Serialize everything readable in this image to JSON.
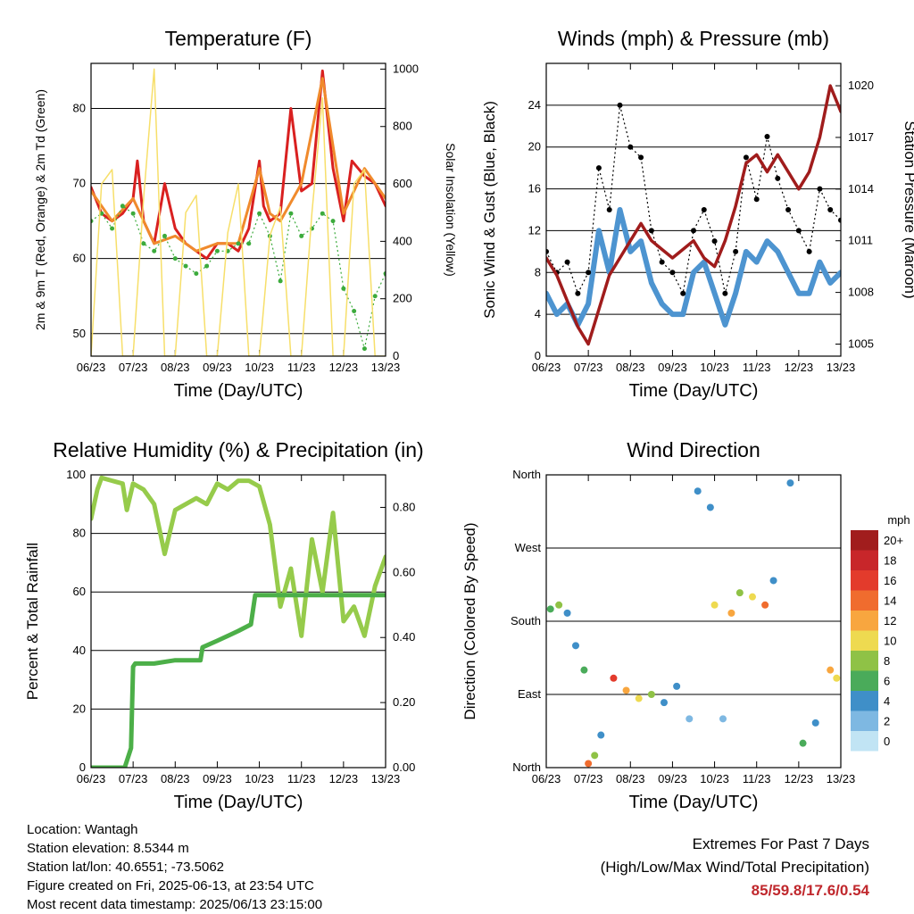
{
  "chart_data": [
    {
      "type": "line",
      "title": "Temperature (F)",
      "xlabel": "Time (Day/UTC)",
      "ylabel": "2m & 9m T (Red, Orange) & 2m Td (Green)",
      "ylabel_right": "Solar Insolation (Yellow)",
      "x_ticks": [
        "06/23",
        "07/23",
        "08/23",
        "09/23",
        "10/23",
        "11/23",
        "12/23",
        "13/23"
      ],
      "ylim": [
        47,
        86
      ],
      "y_ticks": [
        50,
        60,
        70,
        80
      ],
      "ylim_right": [
        0,
        1020
      ],
      "y_ticks_right": [
        0,
        200,
        400,
        600,
        800,
        1000
      ],
      "series": [
        {
          "name": "2m T",
          "color": "#d92020",
          "x": [
            0,
            0.25,
            0.5,
            0.75,
            1.0,
            1.1,
            1.25,
            1.5,
            1.75,
            2.0,
            2.25,
            2.5,
            2.75,
            3.0,
            3.25,
            3.5,
            3.75,
            4.0,
            4.1,
            4.25,
            4.5,
            4.75,
            5.0,
            5.25,
            5.5,
            5.75,
            6.0,
            6.2,
            6.5,
            6.75,
            7.0
          ],
          "y": [
            69.5,
            66,
            65,
            66,
            68,
            73,
            65,
            62,
            70,
            64,
            62,
            61,
            60,
            62,
            62,
            61,
            64,
            73,
            67,
            65,
            66,
            80,
            69,
            70,
            85,
            72,
            65,
            73,
            71,
            70,
            67
          ]
        },
        {
          "name": "9m T",
          "color": "#f08a2c",
          "x": [
            0,
            0.5,
            1.0,
            1.5,
            2.0,
            2.5,
            3.0,
            3.5,
            4.0,
            4.25,
            4.5,
            5.0,
            5.5,
            6.0,
            6.5,
            7.0
          ],
          "y": [
            69,
            65,
            68,
            62,
            63,
            61,
            62,
            62,
            72,
            66,
            65,
            70,
            84,
            66,
            72,
            68
          ]
        },
        {
          "name": "2m Td",
          "color": "#3cab3c",
          "x": [
            0,
            0.25,
            0.5,
            0.75,
            1.0,
            1.25,
            1.5,
            1.75,
            2.0,
            2.25,
            2.5,
            2.75,
            3.0,
            3.25,
            3.5,
            3.75,
            4.0,
            4.25,
            4.5,
            4.75,
            5.0,
            5.25,
            5.5,
            5.75,
            6.0,
            6.25,
            6.5,
            6.75,
            7.0
          ],
          "y": [
            65,
            66,
            64,
            67,
            66,
            62,
            61,
            63,
            60,
            59,
            58,
            59,
            61,
            61,
            62,
            62,
            66,
            63,
            57,
            66,
            63,
            64,
            66,
            65,
            56,
            53,
            48,
            55,
            58
          ]
        },
        {
          "name": "Solar Insolation",
          "color": "#f7df6a",
          "axis": "right",
          "x": [
            0,
            0.25,
            0.5,
            0.75,
            1.0,
            1.25,
            1.5,
            1.75,
            2.0,
            2.25,
            2.5,
            2.75,
            3.0,
            3.25,
            3.5,
            3.75,
            4.0,
            4.25,
            4.5,
            4.75,
            5.0,
            5.25,
            5.5,
            5.75,
            6.0,
            6.25,
            6.5,
            6.75,
            7.0
          ],
          "y": [
            0,
            600,
            650,
            0,
            0,
            550,
            1000,
            0,
            0,
            500,
            560,
            0,
            0,
            430,
            600,
            0,
            0,
            420,
            520,
            0,
            0,
            500,
            900,
            0,
            0,
            600,
            650,
            0,
            0
          ]
        }
      ]
    },
    {
      "type": "line",
      "title": "Winds (mph) & Pressure (mb)",
      "xlabel": "Time (Day/UTC)",
      "ylabel": "Sonic Wind & Gust (Blue, Black)",
      "ylabel_right": "Station Pressure (Maroon)",
      "x_ticks": [
        "06/23",
        "07/23",
        "08/23",
        "09/23",
        "10/23",
        "11/23",
        "12/23",
        "13/23"
      ],
      "ylim": [
        0,
        28
      ],
      "y_ticks": [
        0,
        4,
        8,
        12,
        16,
        20,
        24
      ],
      "ylim_right": [
        1004.3,
        1021.3
      ],
      "y_ticks_right": [
        1005,
        1008,
        1011,
        1014,
        1017,
        1020
      ],
      "series": [
        {
          "name": "Sonic Wind",
          "color": "#4d94d0",
          "x": [
            0,
            0.25,
            0.5,
            0.75,
            1.0,
            1.25,
            1.5,
            1.75,
            2.0,
            2.25,
            2.5,
            2.75,
            3.0,
            3.25,
            3.5,
            3.75,
            4.0,
            4.25,
            4.5,
            4.75,
            5.0,
            5.25,
            5.5,
            5.75,
            6.0,
            6.25,
            6.5,
            6.75,
            7.0
          ],
          "y": [
            6,
            4,
            5,
            3,
            5,
            12,
            8,
            14,
            10,
            11,
            7,
            5,
            4,
            4,
            8,
            9,
            6,
            3,
            6,
            10,
            9,
            11,
            10,
            8,
            6,
            6,
            9,
            7,
            8
          ]
        },
        {
          "name": "Gust",
          "color": "#000000",
          "x": [
            0,
            0.25,
            0.5,
            0.75,
            1.0,
            1.25,
            1.5,
            1.75,
            2.0,
            2.25,
            2.5,
            2.75,
            3.0,
            3.25,
            3.5,
            3.75,
            4.0,
            4.25,
            4.5,
            4.75,
            5.0,
            5.25,
            5.5,
            5.75,
            6.0,
            6.25,
            6.5,
            6.75,
            7.0
          ],
          "y": [
            10,
            8,
            9,
            6,
            8,
            18,
            14,
            24,
            20,
            19,
            12,
            9,
            8,
            6,
            12,
            14,
            11,
            6,
            10,
            19,
            15,
            21,
            17,
            14,
            12,
            10,
            16,
            14,
            13
          ]
        },
        {
          "name": "Station Pressure",
          "color": "#a01c1c",
          "axis": "right",
          "x": [
            0,
            0.25,
            0.5,
            0.75,
            1.0,
            1.25,
            1.5,
            1.75,
            2.0,
            2.25,
            2.5,
            2.75,
            3.0,
            3.25,
            3.5,
            3.75,
            4.0,
            4.25,
            4.5,
            4.75,
            5.0,
            5.25,
            5.5,
            5.75,
            6.0,
            6.25,
            6.5,
            6.75,
            7.0
          ],
          "y": [
            1010,
            1009,
            1007.5,
            1006,
            1005,
            1007,
            1009,
            1010,
            1011,
            1012,
            1011,
            1010.5,
            1010,
            1010.5,
            1011,
            1010,
            1009.5,
            1011,
            1013,
            1015.5,
            1016,
            1015,
            1016,
            1015,
            1014,
            1015,
            1017,
            1020,
            1018.5
          ]
        }
      ]
    },
    {
      "type": "line",
      "title": "Relative Humidity (%) & Precipitation (in)",
      "xlabel": "Time (Day/UTC)",
      "ylabel": "Percent & Total Rainfall",
      "x_ticks": [
        "06/23",
        "07/23",
        "08/23",
        "09/23",
        "10/23",
        "11/23",
        "12/23",
        "13/23"
      ],
      "ylim": [
        0,
        100
      ],
      "y_ticks": [
        0,
        20,
        40,
        60,
        80,
        100
      ],
      "ylim_right": [
        0,
        0.9
      ],
      "y_ticks_right": [
        "0.00",
        "0.20",
        "0.40",
        "0.60",
        "0.80"
      ],
      "series": [
        {
          "name": "Relative Humidity",
          "color": "#96cb4b",
          "x": [
            0,
            0.15,
            0.25,
            0.5,
            0.75,
            0.85,
            1.0,
            1.25,
            1.5,
            1.75,
            2.0,
            2.25,
            2.5,
            2.75,
            3.0,
            3.25,
            3.5,
            3.75,
            4.0,
            4.25,
            4.5,
            4.75,
            5.0,
            5.25,
            5.5,
            5.75,
            6.0,
            6.25,
            6.5,
            6.75,
            7.0
          ],
          "y": [
            85,
            95,
            99,
            98,
            97,
            88,
            97,
            95,
            90,
            73,
            88,
            90,
            92,
            90,
            97,
            95,
            98,
            98,
            96,
            83,
            55,
            68,
            45,
            78,
            60,
            87,
            50,
            55,
            45,
            62,
            72
          ]
        },
        {
          "name": "Total Rainfall",
          "color": "#4caf48",
          "axis": "right",
          "x": [
            0,
            0.8,
            0.95,
            1.0,
            1.05,
            1.5,
            2.0,
            2.6,
            2.65,
            3.0,
            3.5,
            3.8,
            3.9,
            4.5,
            5.0,
            6.0,
            7.0
          ],
          "y": [
            0,
            0,
            0.06,
            0.31,
            0.32,
            0.32,
            0.33,
            0.33,
            0.37,
            0.39,
            0.42,
            0.44,
            0.53,
            0.53,
            0.53,
            0.53,
            0.53
          ]
        }
      ]
    },
    {
      "type": "scatter",
      "title": "Wind Direction",
      "xlabel": "Time (Day/UTC)",
      "ylabel": "Direction (Colored By Speed)",
      "x_ticks": [
        "06/23",
        "07/23",
        "08/23",
        "09/23",
        "10/23",
        "11/23",
        "12/23",
        "13/23"
      ],
      "y_ticks": [
        "North",
        "East",
        "South",
        "West",
        "North"
      ],
      "ylim": [
        0,
        360
      ],
      "colorbar": {
        "unit": "mph",
        "labels": [
          "20+",
          "18",
          "16",
          "14",
          "12",
          "10",
          "8",
          "6",
          "4",
          "2",
          "0"
        ],
        "colors": [
          "#a11d1d",
          "#c8262a",
          "#e33b2c",
          "#f06c2e",
          "#f8a63f",
          "#eeda50",
          "#8fc246",
          "#4aab5a",
          "#3f8fc8",
          "#7eb8e2",
          "#c1e4f4"
        ]
      },
      "points": [
        {
          "x": 0.1,
          "dir": 195,
          "speed": 6
        },
        {
          "x": 0.3,
          "dir": 200,
          "speed": 8
        },
        {
          "x": 0.5,
          "dir": 190,
          "speed": 4
        },
        {
          "x": 0.7,
          "dir": 150,
          "speed": 4
        },
        {
          "x": 0.9,
          "dir": 120,
          "speed": 6
        },
        {
          "x": 1.0,
          "dir": 5,
          "speed": 14
        },
        {
          "x": 1.15,
          "dir": 15,
          "speed": 8
        },
        {
          "x": 1.3,
          "dir": 40,
          "speed": 4
        },
        {
          "x": 1.6,
          "dir": 110,
          "speed": 16
        },
        {
          "x": 1.9,
          "dir": 95,
          "speed": 12
        },
        {
          "x": 2.2,
          "dir": 85,
          "speed": 10
        },
        {
          "x": 2.5,
          "dir": 90,
          "speed": 8
        },
        {
          "x": 2.8,
          "dir": 80,
          "speed": 4
        },
        {
          "x": 3.1,
          "dir": 100,
          "speed": 4
        },
        {
          "x": 3.4,
          "dir": 60,
          "speed": 2
        },
        {
          "x": 3.6,
          "dir": 340,
          "speed": 4
        },
        {
          "x": 3.9,
          "dir": 320,
          "speed": 4
        },
        {
          "x": 4.0,
          "dir": 200,
          "speed": 10
        },
        {
          "x": 4.2,
          "dir": 60,
          "speed": 2
        },
        {
          "x": 4.4,
          "dir": 190,
          "speed": 12
        },
        {
          "x": 4.6,
          "dir": 215,
          "speed": 8
        },
        {
          "x": 4.9,
          "dir": 210,
          "speed": 10
        },
        {
          "x": 5.2,
          "dir": 200,
          "speed": 14
        },
        {
          "x": 5.4,
          "dir": 230,
          "speed": 4
        },
        {
          "x": 5.8,
          "dir": 350,
          "speed": 4
        },
        {
          "x": 6.1,
          "dir": 30,
          "speed": 6
        },
        {
          "x": 6.4,
          "dir": 55,
          "speed": 4
        },
        {
          "x": 6.75,
          "dir": 120,
          "speed": 12
        },
        {
          "x": 6.9,
          "dir": 110,
          "speed": 10
        }
      ]
    }
  ],
  "info": {
    "location": "Location: Wantagh",
    "elevation": "Station elevation: 8.5344 m",
    "latlon": "Station lat/lon: 40.6551; -73.5062",
    "created": "Figure created on Fri, 2025-06-13, at 23:54 UTC",
    "recent": "Most recent data timestamp: 2025/06/13 23:15:00"
  },
  "extremes": {
    "title": "Extremes For Past 7 Days",
    "subtitle": "(High/Low/Max Wind/Total Precipitation)",
    "values": "85/59.8/17.6/0.54"
  }
}
